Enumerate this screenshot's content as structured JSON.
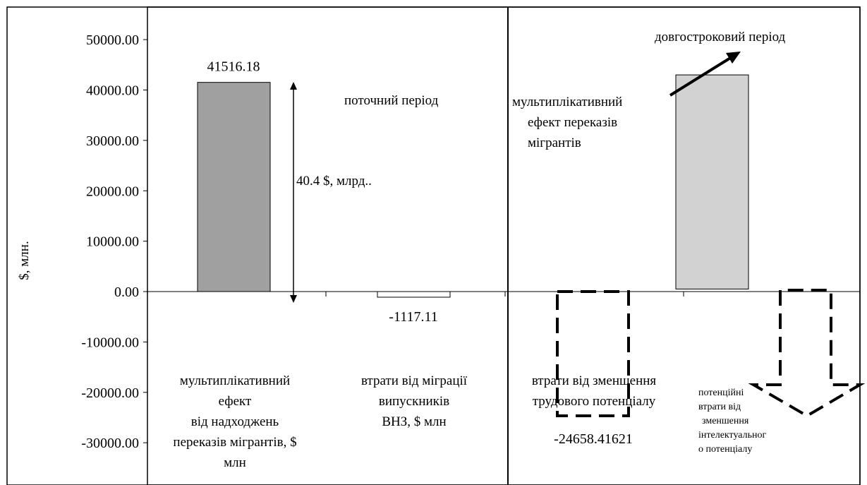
{
  "chart_data": {
    "type": "bar",
    "ylabel": "$, млн.",
    "ylim": [
      -30000,
      50000
    ],
    "yticks": [
      "50000.00",
      "40000.00",
      "30000.00",
      "20000.00",
      "10000.00",
      "0.00",
      "-10000.00",
      "-20000.00",
      "-30000.00"
    ],
    "ytick_values": [
      50000,
      40000,
      30000,
      20000,
      10000,
      0,
      -10000,
      -20000,
      -30000
    ],
    "bars": [
      {
        "label_lines": [
          "мультиплікативний",
          "ефект",
          "від надходжень",
          "переказів мігрантів, $",
          "млн"
        ],
        "value": 41516.18,
        "value_label": "41516.18",
        "color": "#a0a0a0",
        "style": "solid"
      },
      {
        "label_lines": [
          "втрати від міграції",
          "випускників",
          "ВНЗ, $ млн"
        ],
        "value": -1117.11,
        "value_label": "-1117.11",
        "color": "#ffffff",
        "style": "solid"
      },
      {
        "label_lines": [
          "втрати від зменшення",
          "трудового потенціалу"
        ],
        "value": -24658.41621,
        "value_label": "-24658.41621",
        "color": "none",
        "style": "dashed"
      },
      {
        "label_lines": [],
        "value": 43000,
        "base": 500,
        "value_label": "",
        "color": "#d2d2d2",
        "style": "solid"
      }
    ],
    "annotations": {
      "current_period": "поточний період",
      "long_term_period": "довгостроковий період",
      "difference": "40.4 $, млрд..",
      "multiplier_lines": [
        "мультиплікативний",
        "ефект переказів",
        "мігрантів"
      ],
      "potential_loss_lines": [
        "потенційні",
        "втрати від",
        "зменшення",
        "інтелектуальног",
        "о потенціалу"
      ]
    }
  }
}
